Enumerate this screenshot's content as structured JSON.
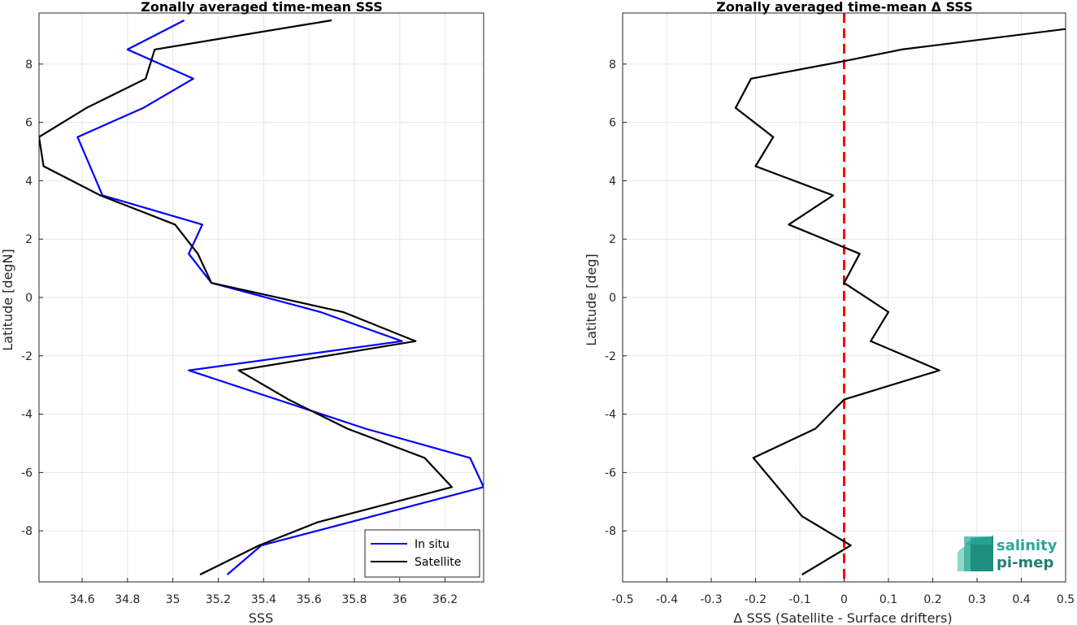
{
  "chart_data": [
    {
      "type": "line",
      "title": "Zonally averaged time-mean SSS",
      "xlabel": "SSS",
      "ylabel": "Latitude [degN]",
      "xlim": [
        34.41,
        36.37
      ],
      "ylim": [
        -9.75,
        9.75
      ],
      "xticks": [
        34.6,
        34.8,
        35,
        35.2,
        35.4,
        35.6,
        35.8,
        36,
        36.2
      ],
      "yticks": [
        -8,
        -6,
        -4,
        -2,
        0,
        2,
        4,
        6,
        8
      ],
      "grid": true,
      "legend_position": "bottom-right",
      "series": [
        {
          "name": "In situ",
          "color": "#0000ff",
          "x": [
            35.05,
            34.8,
            35.09,
            34.87,
            34.58,
            34.69,
            35.13,
            35.07,
            35.17,
            35.65,
            36.01,
            35.07,
            35.85,
            36.31,
            36.37,
            35.39,
            35.24
          ],
          "y": [
            9.5,
            8.5,
            7.5,
            6.5,
            5.5,
            3.5,
            2.5,
            1.5,
            0.5,
            -0.5,
            -1.5,
            -2.5,
            -4.5,
            -5.5,
            -6.5,
            -8.5,
            -9.5
          ]
        },
        {
          "name": "Satellite",
          "color": "#000000",
          "x": [
            35.7,
            34.92,
            34.88,
            34.62,
            34.41,
            34.43,
            34.68,
            35.01,
            35.11,
            35.17,
            35.75,
            36.07,
            35.29,
            35.51,
            35.77,
            36.11,
            36.23,
            35.64,
            35.38,
            35.12
          ],
          "y": [
            9.5,
            8.5,
            7.5,
            6.5,
            5.5,
            4.5,
            3.5,
            2.5,
            1.5,
            0.5,
            -0.5,
            -1.5,
            -2.5,
            -3.5,
            -4.5,
            -5.5,
            -6.5,
            -7.7,
            -8.5,
            -9.5
          ]
        }
      ]
    },
    {
      "type": "line",
      "title": "Zonally averaged time-mean Δ SSS",
      "xlabel": "Δ SSS (Satellite - Surface drifters)",
      "ylabel": "Latitude [deg]",
      "xlim": [
        -0.5,
        0.5
      ],
      "ylim": [
        -9.75,
        9.75
      ],
      "xticks": [
        -0.5,
        -0.4,
        -0.3,
        -0.2,
        -0.1,
        0,
        0.1,
        0.2,
        0.3,
        0.4,
        0.5
      ],
      "yticks": [
        -8,
        -6,
        -4,
        -2,
        0,
        2,
        4,
        6,
        8
      ],
      "grid": true,
      "series": [
        {
          "color": "#000000",
          "x": [
            0.5,
            0.13,
            0.0,
            -0.21,
            -0.245,
            -0.16,
            -0.2,
            -0.025,
            -0.125,
            0.035,
            0.0,
            0.1,
            0.06,
            0.215,
            0.0,
            -0.065,
            -0.205,
            -0.15,
            -0.095,
            0.015,
            -0.095
          ],
          "y": [
            9.2,
            8.5,
            8.1,
            7.5,
            6.5,
            5.5,
            4.5,
            3.5,
            2.5,
            1.5,
            0.5,
            -0.5,
            -1.5,
            -2.5,
            -3.5,
            -4.5,
            -5.5,
            -6.5,
            -7.5,
            -8.5,
            -9.5
          ]
        }
      ],
      "reference_line": {
        "x": 0,
        "color": "#ff0000",
        "style": "dashed"
      }
    }
  ],
  "logo": {
    "line1": "salinity",
    "line2": "pi-mep",
    "color1": "#2aa899",
    "color2": "#1f7f72"
  }
}
